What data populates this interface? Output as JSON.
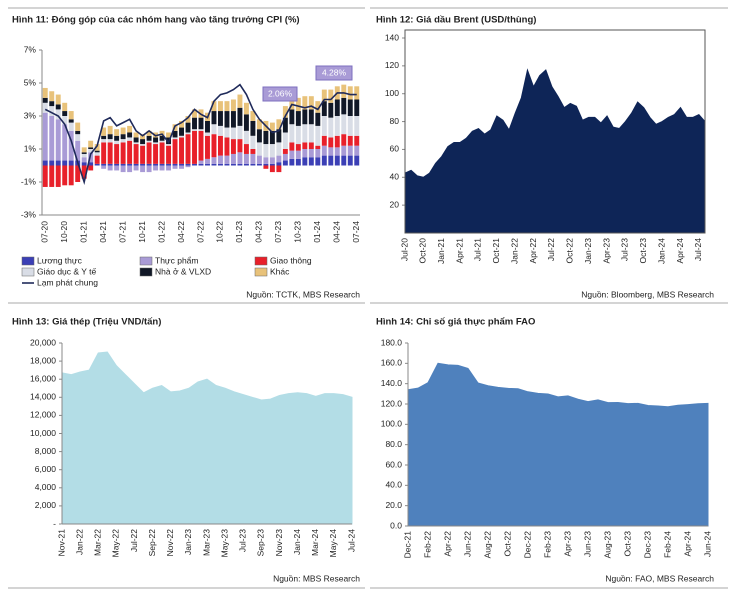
{
  "chart_data": [
    {
      "type": "bar",
      "stacked": true,
      "title": "Hình 11: Đóng góp của các nhóm hang vào tăng trưởng CPI (%)",
      "source": "Nguồn: TCTK, MBS Research",
      "categories": [
        "07-20",
        null,
        null,
        "10-20",
        null,
        null,
        "01-21",
        null,
        null,
        "04-21",
        null,
        null,
        "07-21",
        null,
        null,
        "10-21",
        null,
        null,
        "01-22",
        null,
        null,
        "04-22",
        null,
        null,
        "07-22",
        null,
        null,
        "10-22",
        null,
        null,
        "01-23",
        null,
        null,
        "04-23",
        null,
        null,
        "07-23",
        null,
        null,
        "10-23",
        null,
        null,
        "01-24",
        null,
        null,
        "04-24",
        null,
        null,
        "07-24"
      ],
      "ylim": [
        -3,
        7
      ],
      "yticks": [
        {
          "value": -3,
          "label": "-3%"
        },
        {
          "value": -1,
          "label": "-1%"
        },
        {
          "value": 1,
          "label": "1%"
        },
        {
          "value": 3,
          "label": "3%"
        },
        {
          "value": 5,
          "label": "5%"
        },
        {
          "value": 7,
          "label": "7%"
        }
      ],
      "series": [
        {
          "name": "Lương thực",
          "color": "#3b3fb5",
          "values": [
            0.3,
            0.3,
            0.3,
            0.3,
            0.3,
            0.3,
            0.2,
            0.2,
            0.1,
            0.1,
            0.1,
            0.1,
            0.1,
            0.1,
            0.1,
            0.1,
            0.1,
            0.1,
            0.1,
            0.1,
            0.1,
            0.1,
            0.1,
            0.1,
            0.1,
            0.1,
            0.1,
            0.1,
            0.1,
            0.1,
            0.1,
            0.1,
            0.1,
            0.1,
            0.1,
            0.1,
            0.2,
            0.3,
            0.4,
            0.4,
            0.5,
            0.5,
            0.5,
            0.6,
            0.6,
            0.6,
            0.6,
            0.6,
            0.6
          ]
        },
        {
          "name": "Thực phẩm",
          "color": "#a99bd6",
          "values": [
            2.9,
            2.7,
            2.5,
            2.2,
            1.8,
            1.2,
            0.3,
            0.6,
            0.0,
            -0.2,
            -0.3,
            -0.3,
            -0.4,
            -0.4,
            -0.3,
            -0.4,
            -0.4,
            -0.3,
            -0.3,
            -0.3,
            -0.2,
            -0.2,
            -0.1,
            0.0,
            0.2,
            0.3,
            0.4,
            0.5,
            0.5,
            0.6,
            0.7,
            0.6,
            0.6,
            0.5,
            0.4,
            0.4,
            0.4,
            0.4,
            0.5,
            0.5,
            0.5,
            0.5,
            0.5,
            0.6,
            0.5,
            0.5,
            0.6,
            0.6,
            0.6
          ]
        },
        {
          "name": "Giao thông",
          "color": "#e8202a",
          "values": [
            -1.3,
            -1.3,
            -1.3,
            -1.2,
            -1.2,
            -1.0,
            -0.8,
            -0.3,
            0.5,
            1.3,
            1.3,
            1.2,
            1.3,
            1.4,
            1.2,
            1.1,
            1.3,
            1.2,
            1.3,
            1.1,
            1.5,
            1.6,
            1.8,
            2.0,
            1.8,
            1.4,
            1.4,
            1.2,
            1.1,
            0.9,
            0.8,
            0.6,
            0.3,
            0.0,
            -0.2,
            -0.4,
            -0.4,
            0.3,
            0.5,
            0.4,
            0.4,
            0.4,
            0.2,
            0.6,
            0.6,
            0.7,
            0.7,
            0.6,
            0.6
          ]
        },
        {
          "name": "Giáo dục & Y tế",
          "color": "#d9dde6",
          "values": [
            0.6,
            0.6,
            0.6,
            0.5,
            0.5,
            0.4,
            0.2,
            0.2,
            0.2,
            0.2,
            0.2,
            0.2,
            0.2,
            0.2,
            0.1,
            0.1,
            0.1,
            0.1,
            0.1,
            0.1,
            0.1,
            0.1,
            0.1,
            0.1,
            0.1,
            0.2,
            0.6,
            0.6,
            0.6,
            0.7,
            0.8,
            0.8,
            0.8,
            0.8,
            0.8,
            0.8,
            0.8,
            1.0,
            1.1,
            1.1,
            1.1,
            1.1,
            1.2,
            1.2,
            1.2,
            1.2,
            1.2,
            1.2,
            1.2
          ]
        },
        {
          "name": "Nhà ở & VLXD",
          "color": "#111827",
          "values": [
            0.3,
            0.3,
            0.3,
            0.3,
            0.2,
            0.2,
            0.1,
            0.1,
            0.1,
            0.2,
            0.3,
            0.3,
            0.3,
            0.3,
            0.3,
            0.3,
            0.3,
            0.3,
            0.3,
            0.4,
            0.4,
            0.5,
            0.6,
            0.7,
            0.7,
            0.7,
            0.8,
            0.9,
            1.0,
            1.0,
            1.1,
            1.0,
            0.9,
            0.8,
            0.8,
            0.8,
            0.8,
            0.9,
            0.9,
            0.9,
            0.9,
            0.9,
            0.8,
            0.9,
            0.9,
            1.0,
            1.0,
            1.0,
            1.0
          ]
        },
        {
          "name": "Khác",
          "color": "#e8c27a",
          "values": [
            0.6,
            0.6,
            0.6,
            0.5,
            0.5,
            0.5,
            0.3,
            0.4,
            0.4,
            0.5,
            0.5,
            0.4,
            0.4,
            0.4,
            0.3,
            0.3,
            0.3,
            0.3,
            0.3,
            0.3,
            0.4,
            0.4,
            0.4,
            0.5,
            0.5,
            0.5,
            0.6,
            0.6,
            0.6,
            0.7,
            0.8,
            0.7,
            0.6,
            0.6,
            0.6,
            0.5,
            0.6,
            0.7,
            0.8,
            0.8,
            0.8,
            0.8,
            0.7,
            0.7,
            0.8,
            0.8,
            0.8,
            0.8,
            0.8
          ]
        }
      ],
      "line": {
        "name": "Lạm phát chung",
        "color": "#1f2a5a",
        "values": [
          3.4,
          3.2,
          3.0,
          2.5,
          1.5,
          0.2,
          -1.0,
          0.7,
          1.2,
          2.7,
          2.9,
          2.4,
          2.6,
          2.8,
          2.1,
          1.8,
          2.1,
          1.8,
          1.9,
          1.4,
          2.4,
          2.6,
          2.9,
          3.4,
          3.1,
          2.9,
          3.9,
          4.3,
          4.4,
          4.6,
          4.9,
          4.3,
          3.4,
          2.8,
          2.4,
          2.0,
          2.1,
          3.0,
          3.7,
          3.6,
          3.5,
          3.6,
          3.4,
          4.0,
          4.0,
          4.4,
          4.4,
          4.3,
          4.3
        ]
      },
      "annotations": [
        "2.06%",
        "4.28%"
      ]
    },
    {
      "type": "area",
      "title": "Hình 12: Giá dầu Brent (USD/thùng)",
      "source": "Nguồn: Bloomberg, MBS Research",
      "color": "#0e2557",
      "categories": [
        "Jul-20",
        null,
        null,
        "Oct-20",
        null,
        null,
        "Jan-21",
        null,
        null,
        "Apr-21",
        null,
        null,
        "Jul-21",
        null,
        null,
        "Oct-21",
        null,
        null,
        "Jan-22",
        null,
        null,
        "Apr-22",
        null,
        null,
        "Jul-22",
        null,
        null,
        "Oct-22",
        null,
        null,
        "Jan-23",
        null,
        null,
        "Apr-23",
        null,
        null,
        "Jul-23",
        null,
        null,
        "Oct-23",
        null,
        null,
        "Jan-24",
        null,
        null,
        "Apr-24",
        null,
        null,
        "Jul-24",
        null
      ],
      "values": [
        43,
        45,
        41,
        40,
        43,
        50,
        55,
        62,
        65,
        65,
        68,
        73,
        75,
        71,
        74,
        84,
        81,
        74,
        86,
        97,
        117,
        105,
        113,
        117,
        105,
        98,
        90,
        93,
        91,
        81,
        83,
        83,
        79,
        84,
        76,
        75,
        80,
        86,
        94,
        90,
        83,
        78,
        80,
        83,
        85,
        90,
        83,
        83,
        85,
        80
      ],
      "ylim": [
        0,
        140
      ],
      "yticks": [
        20,
        40,
        60,
        80,
        100,
        120,
        140
      ]
    },
    {
      "type": "area",
      "title": "Hình 13: Giá thép (Triệu VND/tấn)",
      "source": "Nguồn: MBS Research",
      "color": "#b3dde6",
      "categories": [
        "Nov-21",
        null,
        "Jan-22",
        null,
        "Mar-22",
        null,
        "May-22",
        null,
        "Jul-22",
        null,
        "Sep-22",
        null,
        "Nov-22",
        null,
        "Jan-23",
        null,
        "Mar-23",
        null,
        "May-23",
        null,
        "Jul-23",
        null,
        "Sep-23",
        null,
        "Nov-23",
        null,
        "Jan-24",
        null,
        "Mar-24",
        null,
        "May-24",
        null,
        "Jul-24"
      ],
      "values": [
        16700,
        16500,
        16800,
        17000,
        18900,
        19000,
        17500,
        16500,
        15500,
        14500,
        15000,
        15300,
        14600,
        14700,
        15000,
        15700,
        16000,
        15300,
        15000,
        14600,
        14300,
        14000,
        13700,
        13800,
        14200,
        14400,
        14500,
        14400,
        14100,
        14400,
        14400,
        14300,
        14000
      ],
      "ylim": [
        0,
        20000
      ],
      "yticks": [
        {
          "value": 0,
          "label": "-"
        },
        {
          "value": 2000,
          "label": "2,000"
        },
        {
          "value": 4000,
          "label": "4,000"
        },
        {
          "value": 6000,
          "label": "6,000"
        },
        {
          "value": 8000,
          "label": "8,000"
        },
        {
          "value": 10000,
          "label": "10,000"
        },
        {
          "value": 12000,
          "label": "12,000"
        },
        {
          "value": 14000,
          "label": "14,000"
        },
        {
          "value": 16000,
          "label": "16,000"
        },
        {
          "value": 18000,
          "label": "18,000"
        },
        {
          "value": 20000,
          "label": "20,000"
        }
      ]
    },
    {
      "type": "area",
      "title": "Hình 14: Chỉ số giá thực phẩm FAO",
      "source": "Nguồn: FAO, MBS Research",
      "color": "#4f81bd",
      "categories": [
        "Dec-21",
        null,
        "Feb-22",
        null,
        "Apr-22",
        null,
        "Jun-22",
        null,
        "Aug-22",
        null,
        "Oct-22",
        null,
        "Dec-22",
        null,
        "Feb-23",
        null,
        "Apr-23",
        null,
        "Jun-23",
        null,
        "Aug-23",
        null,
        "Oct-23",
        null,
        "Dec-23",
        null,
        "Feb-24",
        null,
        "Apr-24",
        null,
        "Jun-24"
      ],
      "values": [
        134,
        135.6,
        141,
        160,
        158.5,
        158,
        155,
        140.7,
        138,
        136.3,
        135.4,
        135,
        132,
        130.5,
        129.8,
        127,
        128,
        124.7,
        122.4,
        124,
        121.4,
        121.5,
        120.4,
        120.6,
        118.5,
        118,
        117.3,
        118.8,
        119.4,
        120.2,
        120.6
      ],
      "ylim": [
        0,
        180
      ],
      "yticks": [
        {
          "value": 0,
          "label": "0.0"
        },
        {
          "value": 20,
          "label": "20.0"
        },
        {
          "value": 40,
          "label": "40.0"
        },
        {
          "value": 60,
          "label": "60.0"
        },
        {
          "value": 80,
          "label": "80.0"
        },
        {
          "value": 100,
          "label": "100.0"
        },
        {
          "value": 120,
          "label": "120.0"
        },
        {
          "value": 140,
          "label": "140.0"
        },
        {
          "value": 160,
          "label": "160.0"
        },
        {
          "value": 180,
          "label": "180.0"
        }
      ]
    }
  ]
}
